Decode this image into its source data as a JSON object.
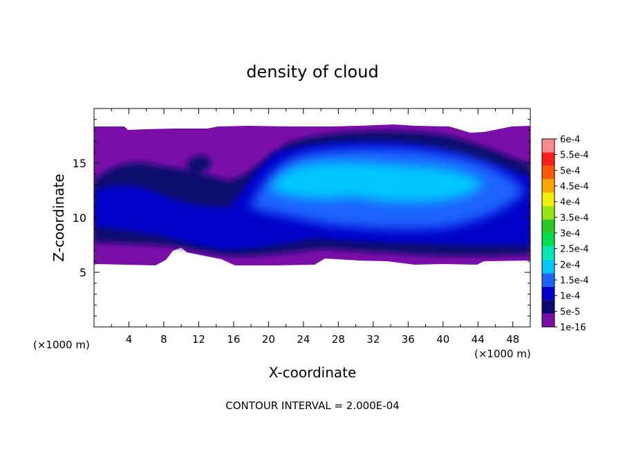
{
  "chart_data": {
    "type": "heatmap",
    "title": "density of cloud",
    "xlabel": "X-coordinate",
    "ylabel": "Z-coordinate",
    "x_unit_label": "(×1000 m)",
    "x_unit_label_right": "(×1000 m)",
    "footer": "CONTOUR INTERVAL = 2.000E-04",
    "xlim": [
      0,
      50
    ],
    "ylim": [
      0,
      20
    ],
    "x_ticks": [
      "4",
      "8",
      "12",
      "16",
      "20",
      "24",
      "28",
      "32",
      "36",
      "40",
      "44",
      "48"
    ],
    "y_ticks": [
      "5",
      "10",
      "15"
    ],
    "colorbar": {
      "labels": [
        "1e-16",
        "5e-5",
        "1e-4",
        "1.5e-4",
        "2e-4",
        "2.5e-4",
        "3e-4",
        "3.5e-4",
        "4e-4",
        "4.5e-4",
        "5e-4",
        "5.5e-4",
        "6e-4"
      ],
      "colors": [
        "#7a0fa8",
        "#0a0a6e",
        "#0000c8",
        "#1e64ff",
        "#00c8ff",
        "#00e6b4",
        "#00dc50",
        "#28c828",
        "#96e614",
        "#f0f000",
        "#ffa500",
        "#ff5a00",
        "#ff1e1e",
        "#ff8c8c"
      ]
    },
    "cloud_region": {
      "z_base_range": [
        6,
        7
      ],
      "z_top_range": [
        17.8,
        18.3
      ],
      "dominant_levels": [
        "1e-16",
        "5e-5",
        "1e-4",
        "1.5e-4",
        "2e-4"
      ]
    }
  }
}
